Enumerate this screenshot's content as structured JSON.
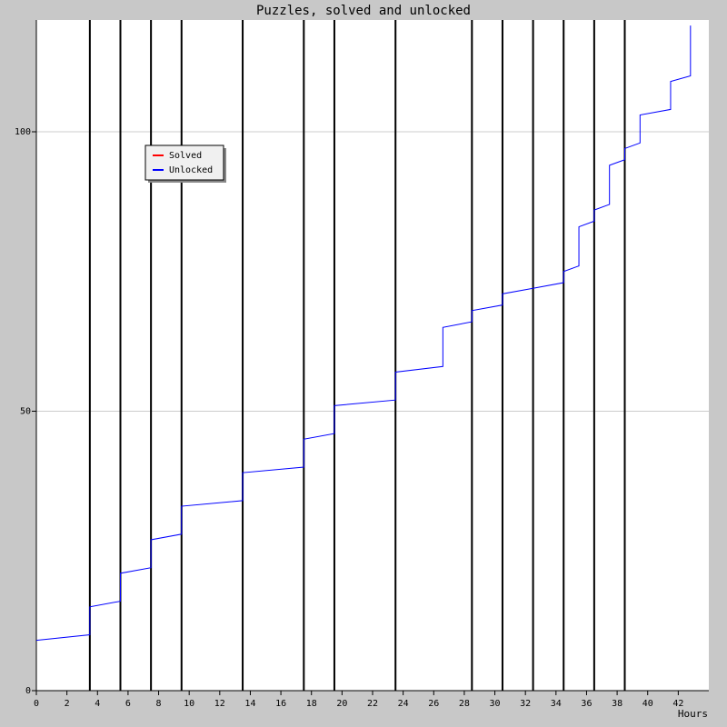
{
  "chart_data": {
    "type": "line",
    "title": "Puzzles, solved and unlocked",
    "x_label": "Hours",
    "xlim": [
      0,
      44
    ],
    "ylim": [
      0,
      120
    ],
    "xticks": [
      0,
      2,
      4,
      6,
      8,
      10,
      12,
      14,
      16,
      18,
      20,
      22,
      24,
      26,
      28,
      30,
      32,
      34,
      36,
      38,
      40,
      42
    ],
    "yticks": [
      0,
      50,
      100
    ],
    "grid": true,
    "legend": "upper left",
    "vlines": [
      3.5,
      5.5,
      7.5,
      9.5,
      13.5,
      17.5,
      19.5,
      23.5,
      28.5,
      30.5,
      32.5,
      34.5,
      36.5,
      38.5
    ],
    "series": [
      {
        "name": "Solved",
        "color": "#ff0000",
        "x": [],
        "values": []
      },
      {
        "name": "Unlocked",
        "color": "#0000ff",
        "x": [
          0,
          3.5,
          3.5,
          5.5,
          5.5,
          7.5,
          7.5,
          9.5,
          9.5,
          13.5,
          13.5,
          17.5,
          17.5,
          19.5,
          19.5,
          23.5,
          23.5,
          26.6,
          26.6,
          28.5,
          28.5,
          30.5,
          30.5,
          32.5,
          34.5,
          34.5,
          35.5,
          35.5,
          36.5,
          36.5,
          37.5,
          37.5,
          38.5,
          38.5,
          39.5,
          39.5,
          41.5,
          41.5,
          42.8,
          42.8
        ],
        "values": [
          9,
          10,
          15,
          16,
          21,
          22,
          27,
          28,
          33,
          34,
          39,
          40,
          45,
          46,
          51,
          52,
          57,
          58,
          65,
          66,
          68,
          69,
          71,
          72,
          73,
          75,
          76,
          83,
          84,
          86,
          87,
          94,
          95,
          97,
          98,
          103,
          104,
          109,
          110,
          119
        ]
      }
    ]
  }
}
